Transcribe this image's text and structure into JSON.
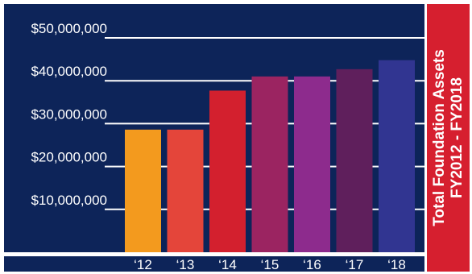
{
  "chart_data": {
    "type": "bar",
    "title": "Total Foundation Assets",
    "subtitle": "FY2012 - FY2018",
    "categories": [
      "‘12",
      "‘13",
      "‘14",
      "‘15",
      "‘16",
      "‘17",
      "‘18"
    ],
    "values": [
      28600000,
      28600000,
      37700000,
      41000000,
      41000000,
      42700000,
      44800000
    ],
    "ytick_labels": [
      "$10,000,000",
      "$20,000,000",
      "$30,000,000",
      "$40,000,000",
      "$50,000,000"
    ],
    "ytick_values": [
      10000000,
      20000000,
      30000000,
      40000000,
      50000000
    ],
    "ylim": [
      0,
      50000000
    ],
    "grid": true,
    "colors": {
      "background": "#0d2459",
      "gridline": "#ffffff",
      "side_panel": "#d61f2f",
      "bars": [
        "#f39a1e",
        "#e4453a",
        "#d3202e",
        "#9b2461",
        "#8d2b8d",
        "#5f1f5c",
        "#313591"
      ]
    }
  }
}
